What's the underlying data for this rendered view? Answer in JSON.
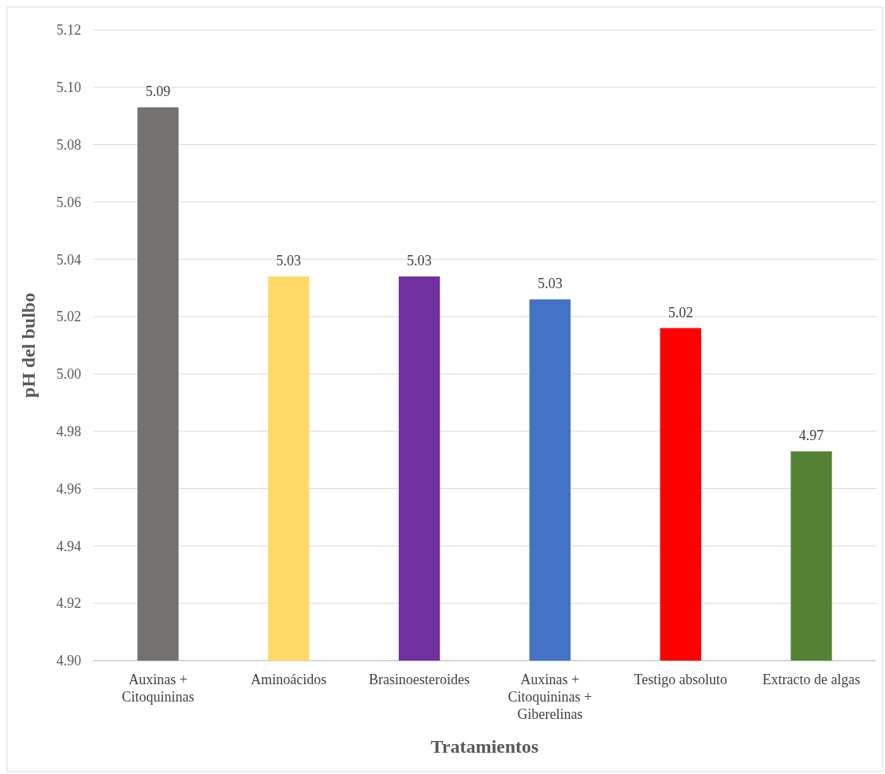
{
  "chart_data": {
    "type": "bar",
    "xlabel": "Tratamientos",
    "ylabel": "pH del bulbo",
    "categories": [
      "Auxinas + Citoquininas",
      "Aminoácidos",
      "Brasinoesteroides",
      "Auxinas + Citoquininas + Giberelinas",
      "Testigo absoluto",
      "Extracto de algas"
    ],
    "values": [
      5.093,
      5.034,
      5.034,
      5.026,
      5.016,
      4.973
    ],
    "value_labels": [
      "5.09",
      "5.03",
      "5.03",
      "5.03",
      "5.02",
      "4.97"
    ],
    "colors": [
      "#767171",
      "#ffd966",
      "#7030a0",
      "#4472c4",
      "#ff0000",
      "#548235"
    ],
    "ylim": [
      4.9,
      5.12
    ],
    "yticks": [
      {
        "value": 4.9,
        "label": "4.90"
      },
      {
        "value": 4.92,
        "label": "4.92"
      },
      {
        "value": 4.94,
        "label": "4.94"
      },
      {
        "value": 4.96,
        "label": "4.96"
      },
      {
        "value": 4.98,
        "label": "4.98"
      },
      {
        "value": 5.0,
        "label": "5.00"
      },
      {
        "value": 5.02,
        "label": "5.02"
      },
      {
        "value": 5.04,
        "label": "5.04"
      },
      {
        "value": 5.06,
        "label": "5.06"
      },
      {
        "value": 5.08,
        "label": "5.08"
      },
      {
        "value": 5.1,
        "label": "5.10"
      },
      {
        "value": 5.12,
        "label": "5.12"
      }
    ],
    "grid": "y"
  }
}
